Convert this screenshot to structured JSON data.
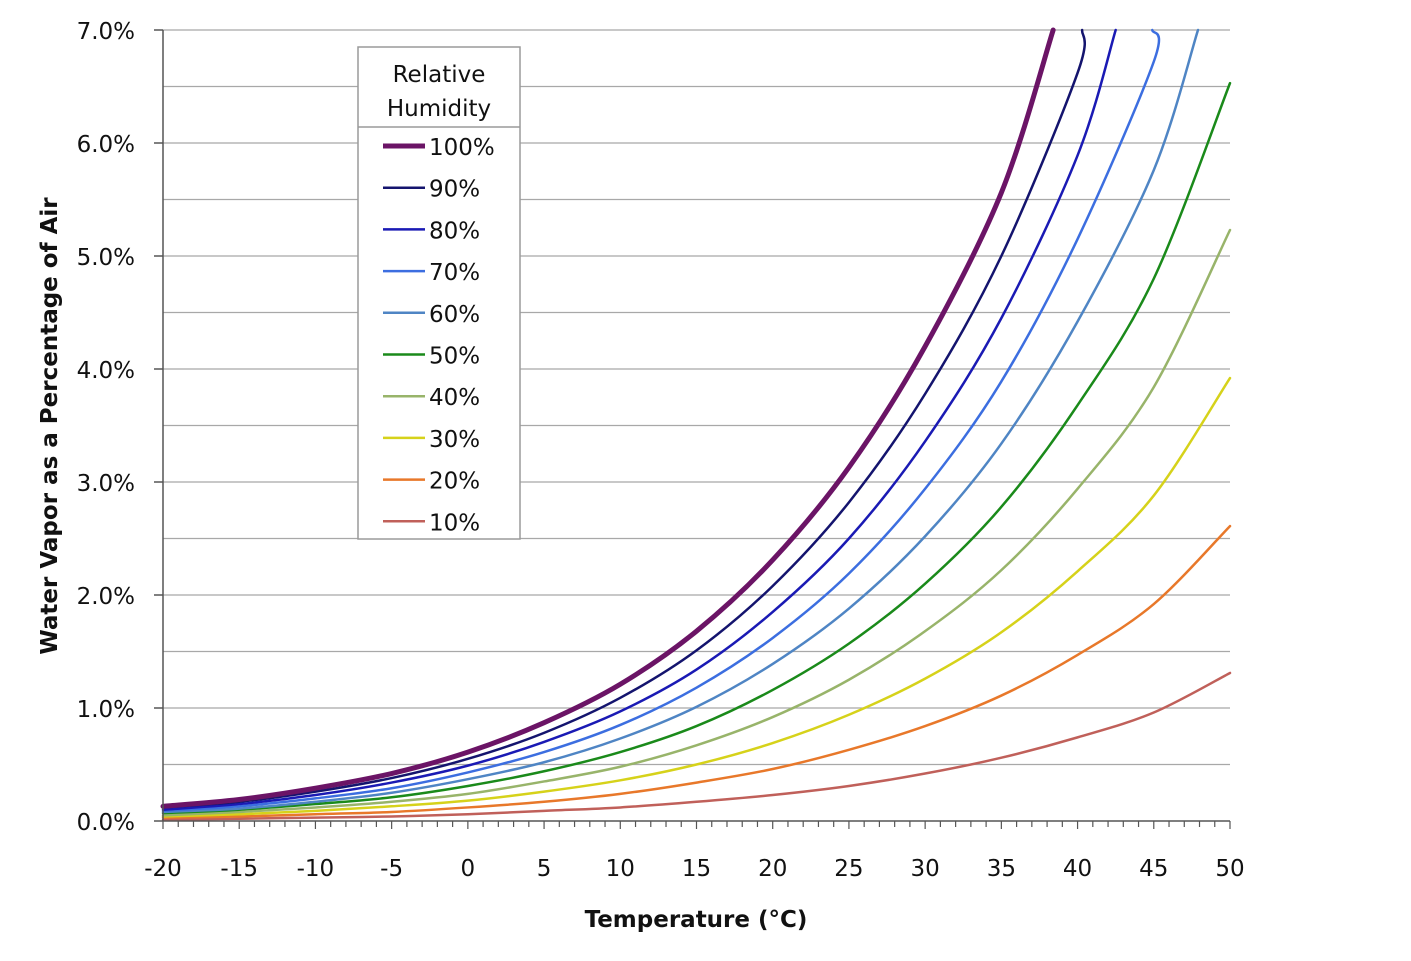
{
  "chart_data": {
    "type": "line",
    "title": "",
    "xlabel": "Temperature (°C)",
    "ylabel": "Water Vapor as a Percentage of Air",
    "xlim": [
      -20,
      50
    ],
    "ylim": [
      0,
      7
    ],
    "x_ticks": [
      -20,
      -15,
      -10,
      -5,
      0,
      5,
      10,
      15,
      20,
      25,
      30,
      35,
      40,
      45,
      50
    ],
    "x_tick_labels": [
      "-20",
      "-15",
      "-10",
      "-5",
      "0",
      "5",
      "10",
      "15",
      "20",
      "25",
      "30",
      "35",
      "40",
      "45",
      "50"
    ],
    "y_ticks": [
      0,
      1,
      2,
      3,
      4,
      5,
      6,
      7
    ],
    "y_tick_labels": [
      "0.0%",
      "1.0%",
      "2.0%",
      "3.0%",
      "4.0%",
      "5.0%",
      "6.0%",
      "7.0%"
    ],
    "grid": true,
    "legend": {
      "title_lines": [
        "Relative",
        "Humidity"
      ],
      "placement": "top-left inside plot"
    },
    "x": [
      -20,
      -15,
      -10,
      -5,
      0,
      5,
      10,
      15,
      20,
      25,
      30,
      35,
      40,
      45,
      50
    ],
    "series": [
      {
        "name": "100%",
        "color": "#6b1466",
        "width": 5,
        "values": [
          0.13,
          0.19,
          0.29,
          0.42,
          0.61,
          0.87,
          1.21,
          1.68,
          2.31,
          3.13,
          4.2,
          5.56,
          null,
          null,
          null
        ],
        "end": {
          "x": 38.4,
          "y": 7.0
        }
      },
      {
        "name": "90%",
        "color": "#14146e",
        "width": 2.5,
        "values": [
          0.12,
          0.17,
          0.26,
          0.38,
          0.55,
          0.78,
          1.09,
          1.51,
          2.08,
          2.82,
          3.78,
          5.0,
          6.62,
          null,
          null
        ],
        "end": {
          "x": 40.3,
          "y": 7.0
        }
      },
      {
        "name": "80%",
        "color": "#1a1ab4",
        "width": 2.5,
        "values": [
          0.1,
          0.15,
          0.23,
          0.34,
          0.49,
          0.7,
          0.97,
          1.34,
          1.85,
          2.5,
          3.36,
          4.45,
          5.89,
          null,
          null
        ],
        "end": {
          "x": 42.5,
          "y": 7.0
        }
      },
      {
        "name": "70%",
        "color": "#3c6ee0",
        "width": 2.5,
        "values": [
          0.09,
          0.13,
          0.2,
          0.29,
          0.43,
          0.61,
          0.85,
          1.18,
          1.62,
          2.19,
          2.94,
          3.89,
          5.15,
          6.72,
          null
        ],
        "end": {
          "x": 44.9,
          "y": 7.0
        }
      },
      {
        "name": "60%",
        "color": "#4f85c4",
        "width": 2.5,
        "values": [
          0.08,
          0.11,
          0.17,
          0.25,
          0.37,
          0.52,
          0.73,
          1.01,
          1.39,
          1.88,
          2.52,
          3.34,
          4.42,
          5.76,
          null
        ],
        "end": {
          "x": 47.9,
          "y": 7.0
        }
      },
      {
        "name": "50%",
        "color": "#1a8a1a",
        "width": 2.5,
        "values": [
          0.07,
          0.1,
          0.15,
          0.21,
          0.31,
          0.44,
          0.61,
          0.84,
          1.16,
          1.57,
          2.1,
          2.78,
          3.68,
          4.8,
          6.53
        ]
      },
      {
        "name": "40%",
        "color": "#98b46a",
        "width": 2.5,
        "values": [
          0.05,
          0.08,
          0.12,
          0.17,
          0.24,
          0.35,
          0.48,
          0.67,
          0.92,
          1.25,
          1.68,
          2.22,
          2.94,
          3.84,
          5.23
        ]
      },
      {
        "name": "30%",
        "color": "#d6d21a",
        "width": 2.5,
        "values": [
          0.04,
          0.06,
          0.09,
          0.13,
          0.18,
          0.26,
          0.36,
          0.5,
          0.69,
          0.94,
          1.26,
          1.67,
          2.21,
          2.88,
          3.92
        ]
      },
      {
        "name": "20%",
        "color": "#e8782a",
        "width": 2.5,
        "values": [
          0.03,
          0.04,
          0.06,
          0.08,
          0.12,
          0.17,
          0.24,
          0.34,
          0.46,
          0.63,
          0.84,
          1.11,
          1.47,
          1.92,
          2.61
        ]
      },
      {
        "name": "10%",
        "color": "#c0605a",
        "width": 2.5,
        "values": [
          0.01,
          0.02,
          0.03,
          0.04,
          0.06,
          0.09,
          0.12,
          0.17,
          0.23,
          0.31,
          0.42,
          0.56,
          0.74,
          0.96,
          1.31
        ]
      }
    ]
  }
}
